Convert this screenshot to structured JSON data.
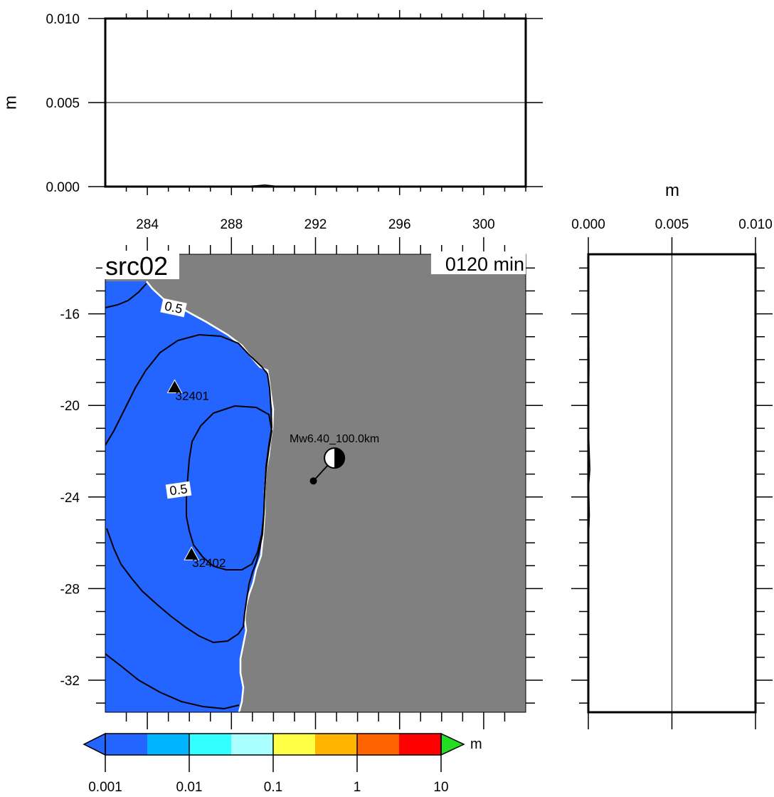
{
  "chart_data": [
    {
      "type": "line",
      "panel": "top-profile",
      "ylabel": "m",
      "xlim": [
        282,
        302
      ],
      "ylim": [
        0.0,
        0.01
      ],
      "xticks": [
        "284",
        "288",
        "292",
        "296",
        "300"
      ],
      "yticks": [
        "0.000",
        "0.005",
        "0.010"
      ],
      "series": [
        {
          "x": [
            282,
            286,
            288.6,
            289.2,
            289.6,
            290,
            290.4,
            302
          ],
          "y": [
            0,
            0,
            2e-05,
            6e-05,
            0.0001,
            5e-05,
            0,
            0
          ]
        }
      ]
    },
    {
      "type": "heatmap",
      "panel": "map",
      "title": "src02",
      "time_label": "0120 min",
      "xlim": [
        282,
        302
      ],
      "ylim": [
        -33.4,
        -13.4
      ],
      "yticks": [
        "-16",
        "-20",
        "-24",
        "-28",
        "-32"
      ],
      "land_color": "#808080",
      "ocean_color": "#2464FF",
      "contour_labels": [
        "0.5",
        "0.5"
      ],
      "stations": [
        {
          "name": "32401",
          "lon": 285.3,
          "lat": -19.2
        },
        {
          "name": "32402",
          "lon": 286.1,
          "lat": -26.5
        }
      ],
      "source": {
        "label": "Mw6.40_100.0km",
        "lon": 292.9,
        "lat": -22.3,
        "epicenter_lon": 291.9,
        "epicenter_lat": -23.3
      },
      "colorbar": {
        "ticks": [
          "0.001",
          "0.01",
          "0.1",
          "1",
          "10"
        ],
        "unit": "m",
        "scale": "log",
        "colors": [
          "#2464FF",
          "#00B4FF",
          "#32FFFF",
          "#AAFFFF",
          "#FFFF46",
          "#FFB400",
          "#FF6400",
          "#FF0000",
          "#22DD22"
        ]
      }
    },
    {
      "type": "line",
      "panel": "right-profile",
      "xlabel": "m",
      "xlim": [
        0.0,
        0.01
      ],
      "ylim": [
        -33.4,
        -13.4
      ],
      "xticks": [
        "0.000",
        "0.005",
        "0.010"
      ],
      "series": [
        {
          "x": [
            0,
            5e-05,
            2e-05,
            4e-05,
            0.0001,
            3e-05,
            7e-05,
            2e-05,
            0
          ],
          "y": [
            -13.4,
            -18.2,
            -20.5,
            -21.5,
            -22.8,
            -23.5,
            -24.8,
            -25.8,
            -33.4
          ]
        }
      ]
    }
  ]
}
